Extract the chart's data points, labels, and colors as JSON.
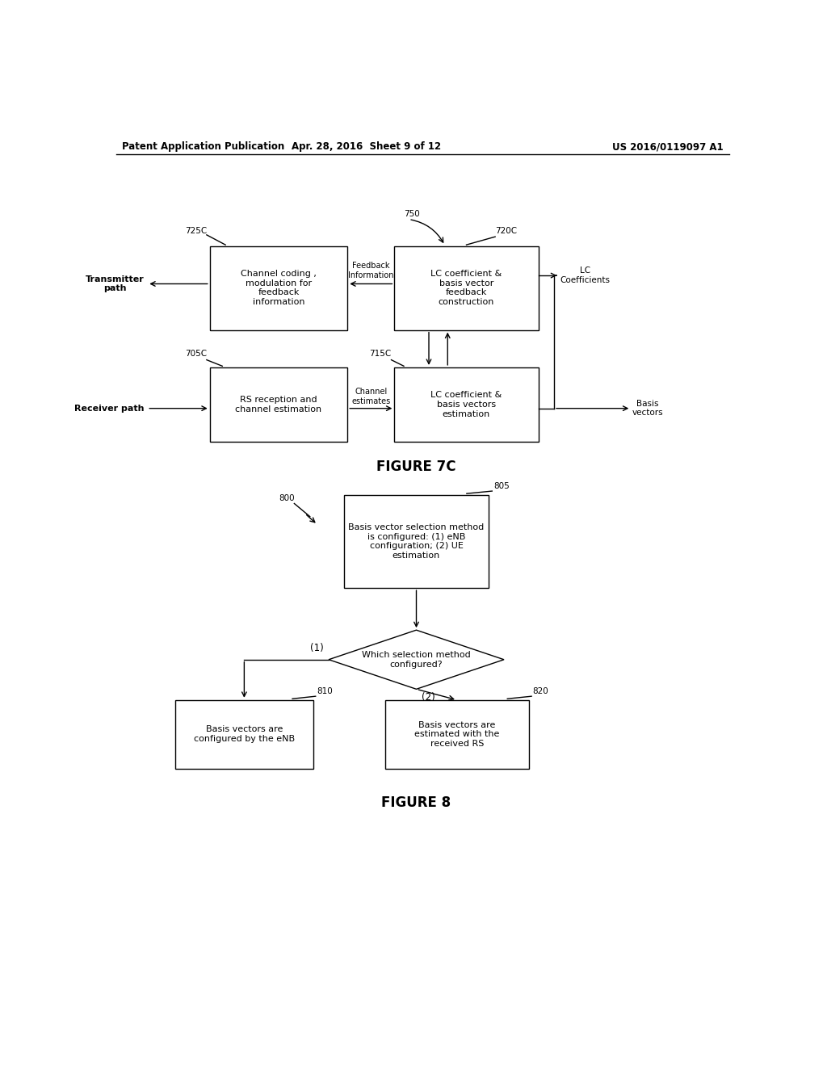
{
  "bg_color": "#ffffff",
  "header_left": "Patent Application Publication",
  "header_mid": "Apr. 28, 2016  Sheet 9 of 12",
  "header_right": "US 2016/0119097 A1",
  "fig7c_label": "FIGURE 7C",
  "fig8_label": "FIGURE 8",
  "fig_width": 10.24,
  "fig_height": 13.2,
  "dpi": 100
}
